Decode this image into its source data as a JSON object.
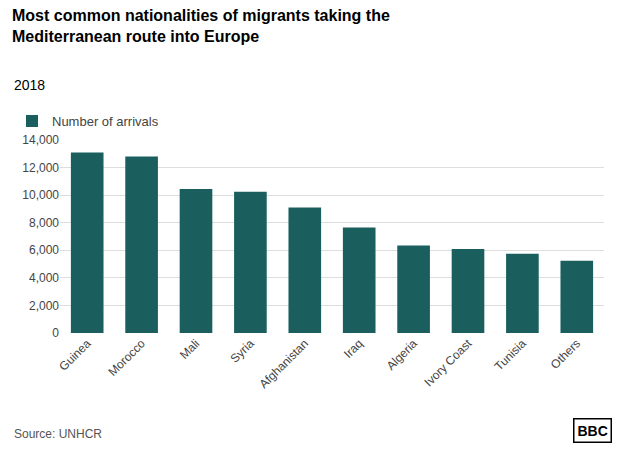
{
  "chart_data": {
    "type": "bar",
    "title": "Most common nationalities of migrants taking the\nMediterranean route into Europe",
    "subtitle": "2018",
    "categories": [
      "Guinea",
      "Morocco",
      "Mali",
      "Syria",
      "Afghanistan",
      "Iraq",
      "Algeria",
      "Ivory Coast",
      "Tunisia",
      "Others"
    ],
    "series": [
      {
        "name": "Number of arrivals",
        "color": "#1a5f5e",
        "values": [
          13100,
          12800,
          10450,
          10250,
          9100,
          7650,
          6350,
          6100,
          5750,
          5250
        ]
      }
    ],
    "ylim": [
      0,
      14000
    ],
    "yticks": [
      0,
      {
        "value": 2000,
        "label": "2,000"
      },
      {
        "value": 4000,
        "label": "4,000"
      },
      {
        "value": 6000,
        "label": "6,000"
      },
      {
        "value": 8000,
        "label": "8,000"
      },
      {
        "value": 10000,
        "label": "10,000"
      },
      {
        "value": 12000,
        "label": "12,000"
      },
      {
        "value": 14000,
        "label": "14,000"
      }
    ],
    "grid": true,
    "legend": "upper left",
    "annotations": [
      "Source: UNHCR",
      "BBC"
    ]
  }
}
